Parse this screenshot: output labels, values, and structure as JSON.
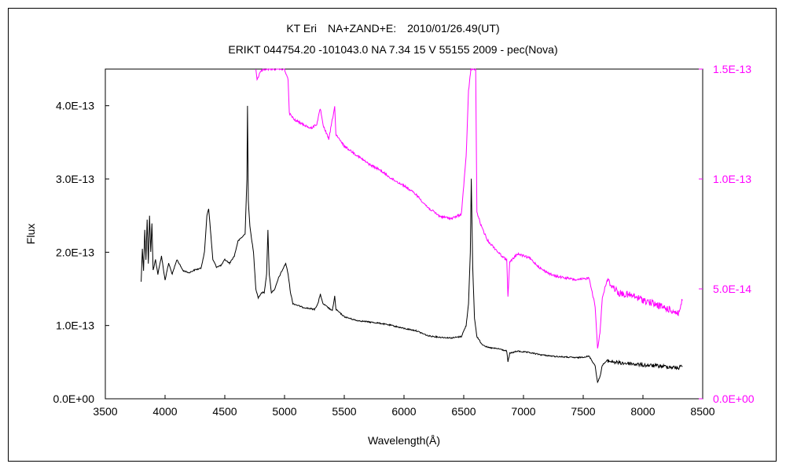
{
  "chart_data": {
    "type": "line",
    "title": "KT Eri　NA+ZAND+E:　2010/01/26.49(UT)",
    "subtitle": "ERIKT 044754.20 -101043.0 NA 7.34 15 V 55155 2009 - pec(Nova)",
    "xlabel": "Wavelength(Å)",
    "ylabel": "Flux",
    "xlim": [
      3500,
      8500
    ],
    "ylim": [
      0,
      4.5e-13
    ],
    "y2lim": [
      0,
      1.5e-13
    ],
    "x_ticks": [
      "3500",
      "4000",
      "4500",
      "5000",
      "5500",
      "6000",
      "6500",
      "7000",
      "7500",
      "8000",
      "8500"
    ],
    "y_ticks": [
      "0.0E+00",
      "1.0E-13",
      "2.0E-13",
      "3.0E-13",
      "4.0E-13"
    ],
    "y2_ticks": [
      "0.0E+00",
      "5.0E-14",
      "1.0E-13",
      "1.5E-13"
    ],
    "grid": false,
    "colors": {
      "primary": "#000000",
      "secondary": "#ff00ff"
    },
    "series": [
      {
        "axis": "left",
        "color": "#000000",
        "points": [
          [
            3800,
            1.6e-13
          ],
          [
            3810,
            2.05e-13
          ],
          [
            3820,
            1.75e-13
          ],
          [
            3830,
            2.3e-13
          ],
          [
            3840,
            1.9e-13
          ],
          [
            3850,
            2.45e-13
          ],
          [
            3860,
            1.85e-13
          ],
          [
            3870,
            2.5e-13
          ],
          [
            3880,
            2e-13
          ],
          [
            3890,
            2.4e-13
          ],
          [
            3900,
            1.75e-13
          ],
          [
            3920,
            1.9e-13
          ],
          [
            3940,
            1.7e-13
          ],
          [
            3970,
            1.95e-13
          ],
          [
            4000,
            1.62e-13
          ],
          [
            4030,
            1.85e-13
          ],
          [
            4060,
            1.7e-13
          ],
          [
            4100,
            1.9e-13
          ],
          [
            4150,
            1.75e-13
          ],
          [
            4200,
            1.72e-13
          ],
          [
            4250,
            1.76e-13
          ],
          [
            4300,
            1.78e-13
          ],
          [
            4330,
            2e-13
          ],
          [
            4350,
            2.5e-13
          ],
          [
            4365,
            2.6e-13
          ],
          [
            4380,
            2.3e-13
          ],
          [
            4400,
            1.9e-13
          ],
          [
            4430,
            1.8e-13
          ],
          [
            4470,
            1.82e-13
          ],
          [
            4500,
            1.9e-13
          ],
          [
            4540,
            1.85e-13
          ],
          [
            4580,
            1.95e-13
          ],
          [
            4610,
            2.15e-13
          ],
          [
            4640,
            2.2e-13
          ],
          [
            4670,
            2.25e-13
          ],
          [
            4685,
            3e-13
          ],
          [
            4690,
            4e-13
          ],
          [
            4697,
            2.7e-13
          ],
          [
            4710,
            2.35e-13
          ],
          [
            4740,
            2e-13
          ],
          [
            4760,
            1.5e-13
          ],
          [
            4780,
            1.38e-13
          ],
          [
            4810,
            1.45e-13
          ],
          [
            4830,
            1.45e-13
          ],
          [
            4850,
            1.7e-13
          ],
          [
            4861,
            2.3e-13
          ],
          [
            4872,
            1.7e-13
          ],
          [
            4890,
            1.45e-13
          ],
          [
            4920,
            1.5e-13
          ],
          [
            4950,
            1.65e-13
          ],
          [
            4980,
            1.75e-13
          ],
          [
            5010,
            1.85e-13
          ],
          [
            5030,
            1.7e-13
          ],
          [
            5050,
            1.45e-13
          ],
          [
            5070,
            1.3e-13
          ],
          [
            5150,
            1.25e-13
          ],
          [
            5250,
            1.22e-13
          ],
          [
            5280,
            1.3e-13
          ],
          [
            5300,
            1.43e-13
          ],
          [
            5320,
            1.3e-13
          ],
          [
            5400,
            1.2e-13
          ],
          [
            5420,
            1.4e-13
          ],
          [
            5430,
            1.22e-13
          ],
          [
            5500,
            1.12e-13
          ],
          [
            5600,
            1.07e-13
          ],
          [
            5700,
            1.05e-13
          ],
          [
            5800,
            1.03e-13
          ],
          [
            5900,
            1e-13
          ],
          [
            6000,
            9.6e-14
          ],
          [
            6100,
            9.3e-14
          ],
          [
            6200,
            8.6e-14
          ],
          [
            6300,
            8.4e-14
          ],
          [
            6400,
            8.3e-14
          ],
          [
            6480,
            8.5e-14
          ],
          [
            6520,
            1e-13
          ],
          [
            6540,
            1.3e-13
          ],
          [
            6555,
            2e-13
          ],
          [
            6563,
            3e-13
          ],
          [
            6575,
            1.8e-13
          ],
          [
            6590,
            1.1e-13
          ],
          [
            6610,
            8.5e-14
          ],
          [
            6650,
            7.5e-14
          ],
          [
            6700,
            7e-14
          ],
          [
            6800,
            6.8e-14
          ],
          [
            6860,
            6.5e-14
          ],
          [
            6870,
            5e-14
          ],
          [
            6885,
            6.2e-14
          ],
          [
            6950,
            6.5e-14
          ],
          [
            7050,
            6.3e-14
          ],
          [
            7150,
            6e-14
          ],
          [
            7250,
            5.8e-14
          ],
          [
            7350,
            5.7e-14
          ],
          [
            7450,
            5.6e-14
          ],
          [
            7550,
            5.8e-14
          ],
          [
            7600,
            4.5e-14
          ],
          [
            7620,
            2.2e-14
          ],
          [
            7640,
            3e-14
          ],
          [
            7660,
            4.6e-14
          ],
          [
            7700,
            5.2e-14
          ],
          [
            7800,
            4.9e-14
          ],
          [
            7900,
            4.8e-14
          ],
          [
            8000,
            4.6e-14
          ],
          [
            8100,
            4.5e-14
          ],
          [
            8200,
            4.4e-14
          ],
          [
            8300,
            4.2e-14
          ],
          [
            8330,
            4.6e-14
          ]
        ]
      },
      {
        "axis": "right",
        "color": "#ff00ff",
        "points": [
          [
            4760,
            1.5e-13
          ],
          [
            4770,
            1.45e-13
          ],
          [
            4790,
            1.48e-13
          ],
          [
            4820,
            1.5e-13
          ],
          [
            4860,
            1.5e-13
          ],
          [
            4900,
            1.5e-13
          ],
          [
            4950,
            1.5e-13
          ],
          [
            5000,
            1.5e-13
          ],
          [
            5030,
            1.45e-13
          ],
          [
            5040,
            1.3e-13
          ],
          [
            5080,
            1.27e-13
          ],
          [
            5150,
            1.25e-13
          ],
          [
            5220,
            1.23e-13
          ],
          [
            5270,
            1.25e-13
          ],
          [
            5300,
            1.32e-13
          ],
          [
            5320,
            1.25e-13
          ],
          [
            5370,
            1.18e-13
          ],
          [
            5420,
            1.33e-13
          ],
          [
            5430,
            1.2e-13
          ],
          [
            5500,
            1.15e-13
          ],
          [
            5600,
            1.11e-13
          ],
          [
            5700,
            1.07e-13
          ],
          [
            5800,
            1.04e-13
          ],
          [
            5900,
            1e-13
          ],
          [
            6000,
            9.7e-14
          ],
          [
            6100,
            9.3e-14
          ],
          [
            6200,
            8.7e-14
          ],
          [
            6300,
            8.3e-14
          ],
          [
            6400,
            8.2e-14
          ],
          [
            6480,
            8.4e-14
          ],
          [
            6520,
            1.1e-13
          ],
          [
            6540,
            1.4e-13
          ],
          [
            6560,
            1.5e-13
          ],
          [
            6600,
            1.5e-13
          ],
          [
            6610,
            8.5e-14
          ],
          [
            6650,
            7.8e-14
          ],
          [
            6700,
            7.2e-14
          ],
          [
            6800,
            6.6e-14
          ],
          [
            6860,
            6.3e-14
          ],
          [
            6870,
            4.7e-14
          ],
          [
            6885,
            6.2e-14
          ],
          [
            6950,
            6.6e-14
          ],
          [
            7050,
            6.4e-14
          ],
          [
            7150,
            5.9e-14
          ],
          [
            7250,
            5.6e-14
          ],
          [
            7350,
            5.5e-14
          ],
          [
            7450,
            5.4e-14
          ],
          [
            7550,
            5.5e-14
          ],
          [
            7600,
            4.2e-14
          ],
          [
            7620,
            2.3e-14
          ],
          [
            7640,
            3e-14
          ],
          [
            7660,
            4.6e-14
          ],
          [
            7700,
            5.4e-14
          ],
          [
            7800,
            4.8e-14
          ],
          [
            7900,
            4.7e-14
          ],
          [
            8000,
            4.5e-14
          ],
          [
            8100,
            4.3e-14
          ],
          [
            8200,
            4.1e-14
          ],
          [
            8300,
            3.9e-14
          ],
          [
            8330,
            4.5e-14
          ]
        ]
      }
    ]
  }
}
